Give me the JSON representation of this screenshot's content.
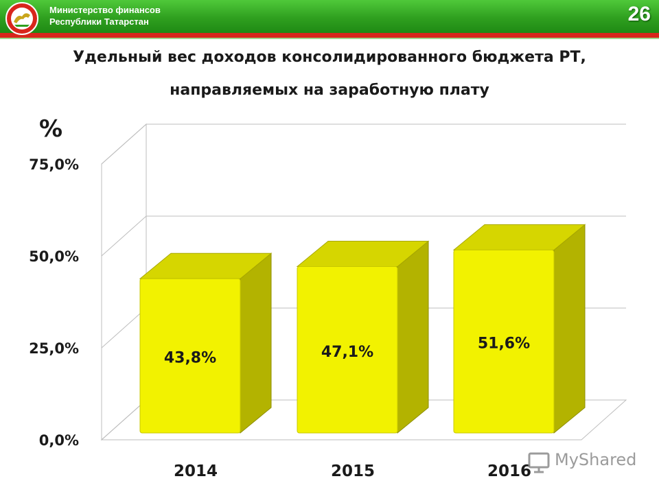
{
  "header": {
    "org_line1": "Министерство финансов",
    "org_line2": "Республики Татарстан",
    "page_number": "26",
    "brand_green": "#2f9f1f",
    "brand_red": "#d8261c"
  },
  "watermark": {
    "text": "MyShared"
  },
  "chart_data": {
    "type": "bar",
    "title_line1": "Удельный вес  доходов консолидированного бюджета РТ,",
    "title_line2": "направляемых на заработную плату",
    "ylabel": "%",
    "categories": [
      "2014",
      "2015",
      "2016"
    ],
    "values": [
      43.8,
      47.1,
      51.6
    ],
    "value_labels": [
      "43,8%",
      "47,1%",
      "51,6%"
    ],
    "ylim": [
      0,
      75
    ],
    "yticks": [
      0,
      25,
      50,
      75
    ],
    "ytick_labels": [
      "0,0%",
      "25,0%",
      "50,0%",
      "75,0%"
    ],
    "grid": true,
    "style": "3d",
    "bar_color": "#f2f200"
  }
}
